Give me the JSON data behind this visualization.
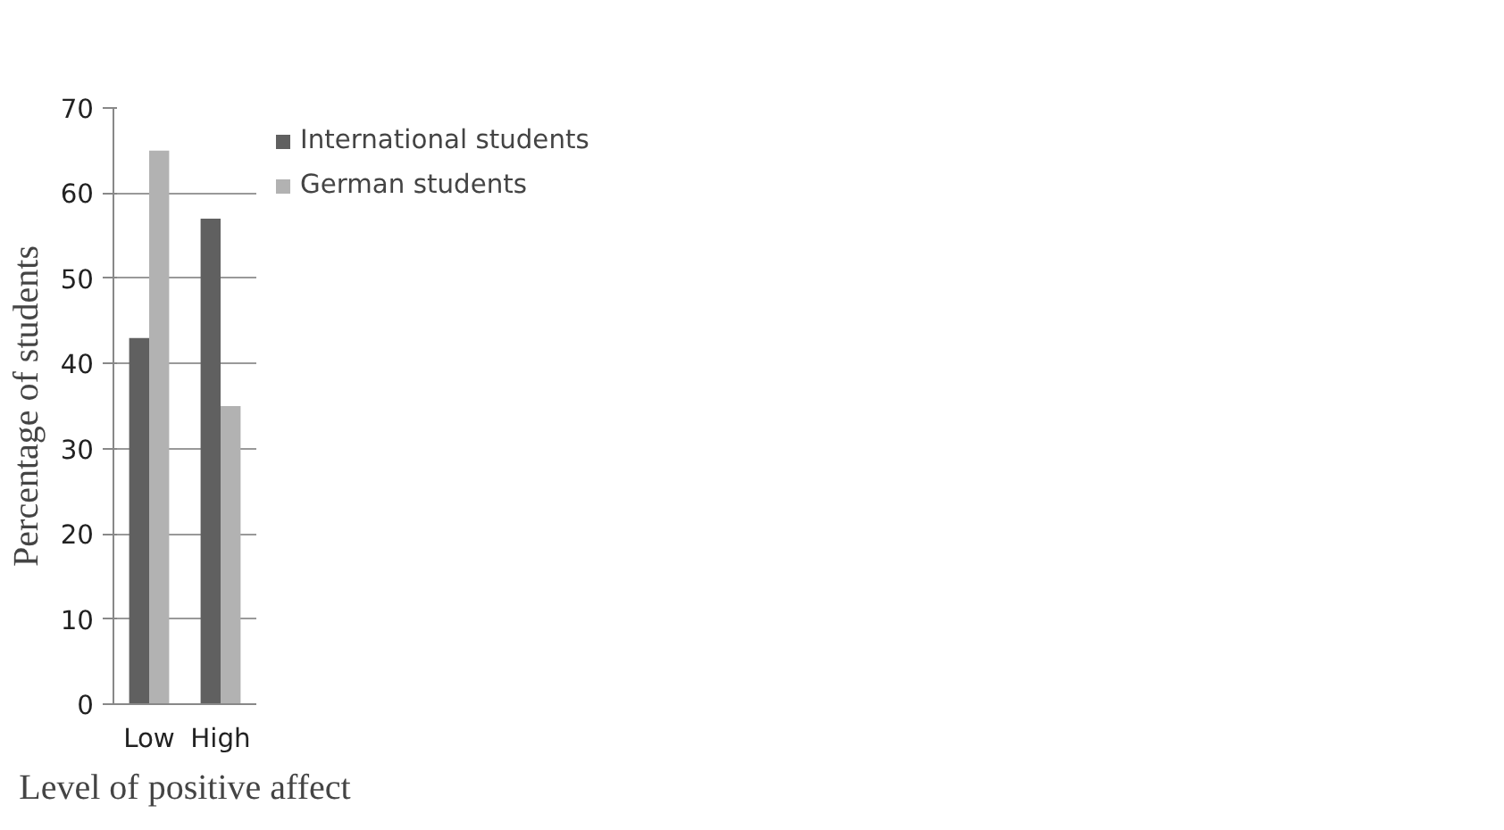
{
  "chart_data": {
    "type": "bar",
    "xlabel": "Level of positive affect",
    "ylabel": "Percentage of students",
    "categories": [
      "Low",
      "High"
    ],
    "series": [
      {
        "name": "International students",
        "color": "#606060",
        "values": [
          43,
          57
        ]
      },
      {
        "name": "German students",
        "color": "#b2b2b2",
        "values": [
          65,
          35
        ]
      }
    ],
    "ylim": [
      0,
      70
    ],
    "yticks": [
      0,
      10,
      20,
      30,
      40,
      50,
      60,
      70
    ],
    "grid": "y",
    "legend": "right"
  }
}
